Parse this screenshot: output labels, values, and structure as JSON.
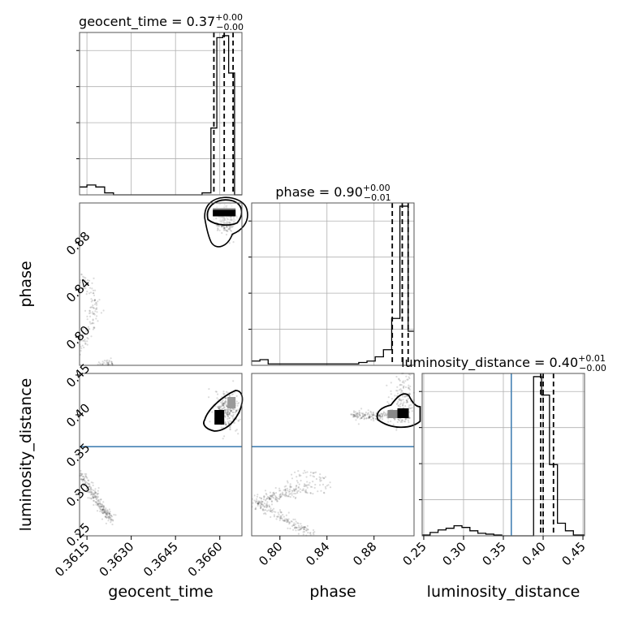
{
  "chart_data": {
    "type": "corner",
    "parameters": [
      {
        "name": "geocent_time",
        "label": "geocent_time",
        "range": [
          0.36125,
          0.36675
        ],
        "ticks": [
          0.3615,
          0.363,
          0.3645,
          0.366
        ],
        "tick_labels": [
          "0.3615",
          "0.3630",
          "0.3645",
          "0.3660"
        ],
        "title": {
          "prefix": "geocent_time = 0.37",
          "sup": "+0.00",
          "sub": "−0.00"
        },
        "quantiles": [
          0.3658,
          0.36615,
          0.36645
        ],
        "histogram": {
          "edges": [
            0.36125,
            0.3615,
            0.3618,
            0.3621,
            0.3624,
            0.3627,
            0.363,
            0.3633,
            0.3636,
            0.3639,
            0.3642,
            0.3645,
            0.3648,
            0.3651,
            0.3654,
            0.3657,
            0.3659,
            0.3661,
            0.3663,
            0.3665,
            0.36675
          ],
          "counts": [
            4,
            5,
            4,
            1,
            0,
            0,
            0,
            0,
            0,
            0,
            0,
            0,
            0,
            0,
            1,
            34,
            80,
            81,
            62,
            0
          ]
        }
      },
      {
        "name": "phase",
        "label": "phase",
        "range": [
          0.776,
          0.914
        ],
        "ticks": [
          0.8,
          0.84,
          0.88
        ],
        "tick_labels": [
          "0.80",
          "0.84",
          "0.88"
        ],
        "title": {
          "prefix": "phase = 0.90",
          "sup": "+0.00",
          "sub": "−0.01"
        },
        "quantiles": [
          0.8955,
          0.904,
          0.909
        ],
        "histogram": {
          "edges": [
            0.776,
            0.783,
            0.79,
            0.797,
            0.804,
            0.811,
            0.818,
            0.825,
            0.832,
            0.839,
            0.846,
            0.853,
            0.86,
            0.867,
            0.874,
            0.881,
            0.888,
            0.895,
            0.902,
            0.909,
            0.914
          ],
          "counts": [
            3,
            4,
            1,
            1,
            1,
            1,
            1,
            1,
            1,
            1,
            1,
            1,
            1,
            2,
            3,
            6,
            11,
            33,
            112,
            24
          ]
        }
      },
      {
        "name": "luminosity_distance",
        "label": "luminosity_distance",
        "range": [
          0.248,
          0.452
        ],
        "ticks": [
          0.25,
          0.3,
          0.35,
          0.4,
          0.45
        ],
        "tick_labels": [
          "0.25",
          "0.30",
          "0.35",
          "0.40",
          "0.45"
        ],
        "y_ticks": [
          0.25,
          0.3,
          0.35,
          0.4,
          0.45
        ],
        "y_tick_labels": [
          "0.25",
          "0.30",
          "0.35",
          "0.40",
          "0.45"
        ],
        "title": {
          "prefix": "luminosity_distance = 0.40",
          "sup": "+0.01",
          "sub": "−0.00"
        },
        "quantiles": [
          0.397,
          0.4,
          0.413
        ],
        "truth": 0.36,
        "histogram": {
          "edges": [
            0.248,
            0.258,
            0.268,
            0.278,
            0.288,
            0.298,
            0.308,
            0.318,
            0.328,
            0.338,
            0.348,
            0.358,
            0.368,
            0.378,
            0.388,
            0.398,
            0.408,
            0.418,
            0.428,
            0.438,
            0.452
          ],
          "counts": [
            1,
            4,
            7,
            9,
            12,
            10,
            6,
            3,
            2,
            1,
            0,
            0,
            0,
            0,
            190,
            168,
            85,
            15,
            6,
            1
          ]
        }
      }
    ],
    "grid": true,
    "truth_color": "#4682b4",
    "sample_color": "#000000"
  }
}
